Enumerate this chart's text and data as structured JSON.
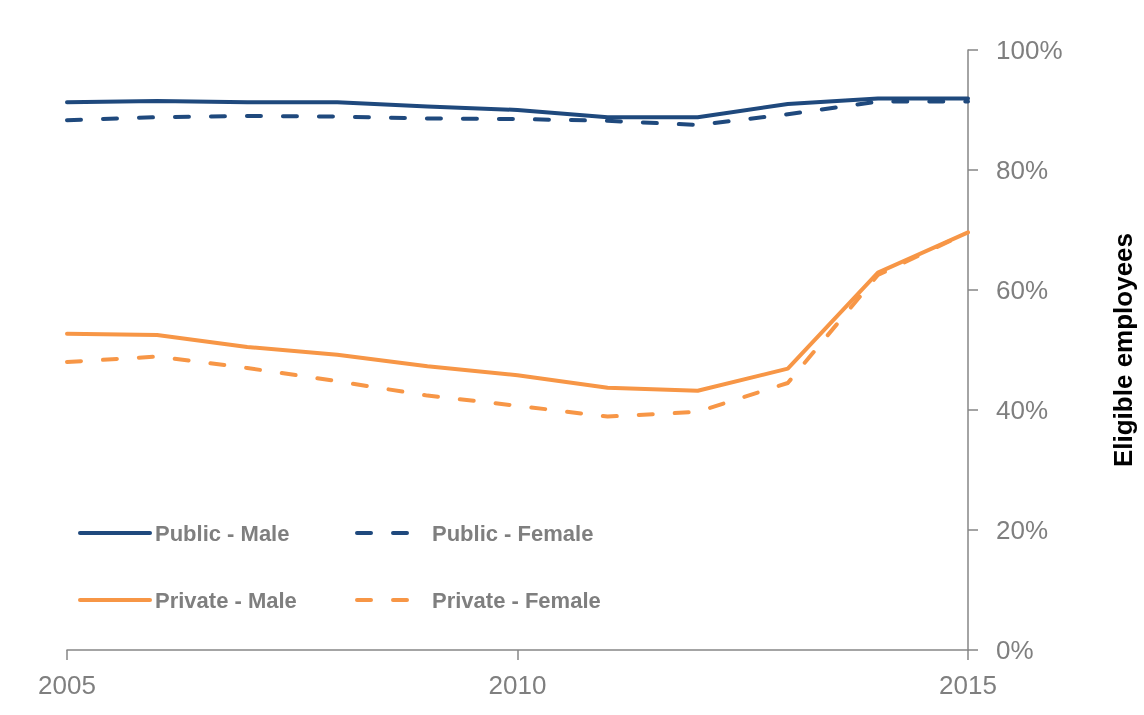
{
  "chart_data": {
    "type": "line",
    "ylabel": "Eligible employees",
    "x": [
      2005,
      2006,
      2007,
      2008,
      2009,
      2010,
      2011,
      2012,
      2013,
      2014,
      2015
    ],
    "series": [
      {
        "name": "Public - Male",
        "color": "#1f497d",
        "line_style": "solid",
        "values": [
          91.3,
          91.5,
          91.3,
          91.3,
          90.6,
          90.0,
          88.8,
          88.8,
          91.0,
          91.9,
          91.9
        ]
      },
      {
        "name": "Public - Female",
        "color": "#1f497d",
        "line_style": "dashed",
        "values": [
          88.3,
          88.8,
          89.0,
          88.9,
          88.6,
          88.5,
          88.2,
          87.5,
          89.3,
          91.4,
          91.4
        ]
      },
      {
        "name": "Private - Male",
        "color": "#f79646",
        "line_style": "solid",
        "values": [
          52.7,
          52.5,
          50.5,
          49.2,
          47.3,
          45.8,
          43.7,
          43.2,
          46.9,
          62.9,
          69.6
        ]
      },
      {
        "name": "Private - Female",
        "color": "#f79646",
        "line_style": "dashed",
        "values": [
          48.0,
          48.9,
          47.0,
          44.8,
          42.4,
          40.7,
          38.9,
          39.7,
          44.5,
          62.5,
          69.6
        ]
      }
    ],
    "xlim": [
      2005,
      2015
    ],
    "xticks": [
      2005,
      2010,
      2015
    ],
    "ylim": [
      0,
      100
    ],
    "yticks": [
      {
        "value": 0,
        "label": "0%"
      },
      {
        "value": 20,
        "label": "20%"
      },
      {
        "value": 40,
        "label": "40%"
      },
      {
        "value": 60,
        "label": "60%"
      },
      {
        "value": 80,
        "label": "80%"
      },
      {
        "value": 100,
        "label": "100%"
      }
    ],
    "grid": false,
    "legend": "bottom left",
    "marker": "none"
  }
}
